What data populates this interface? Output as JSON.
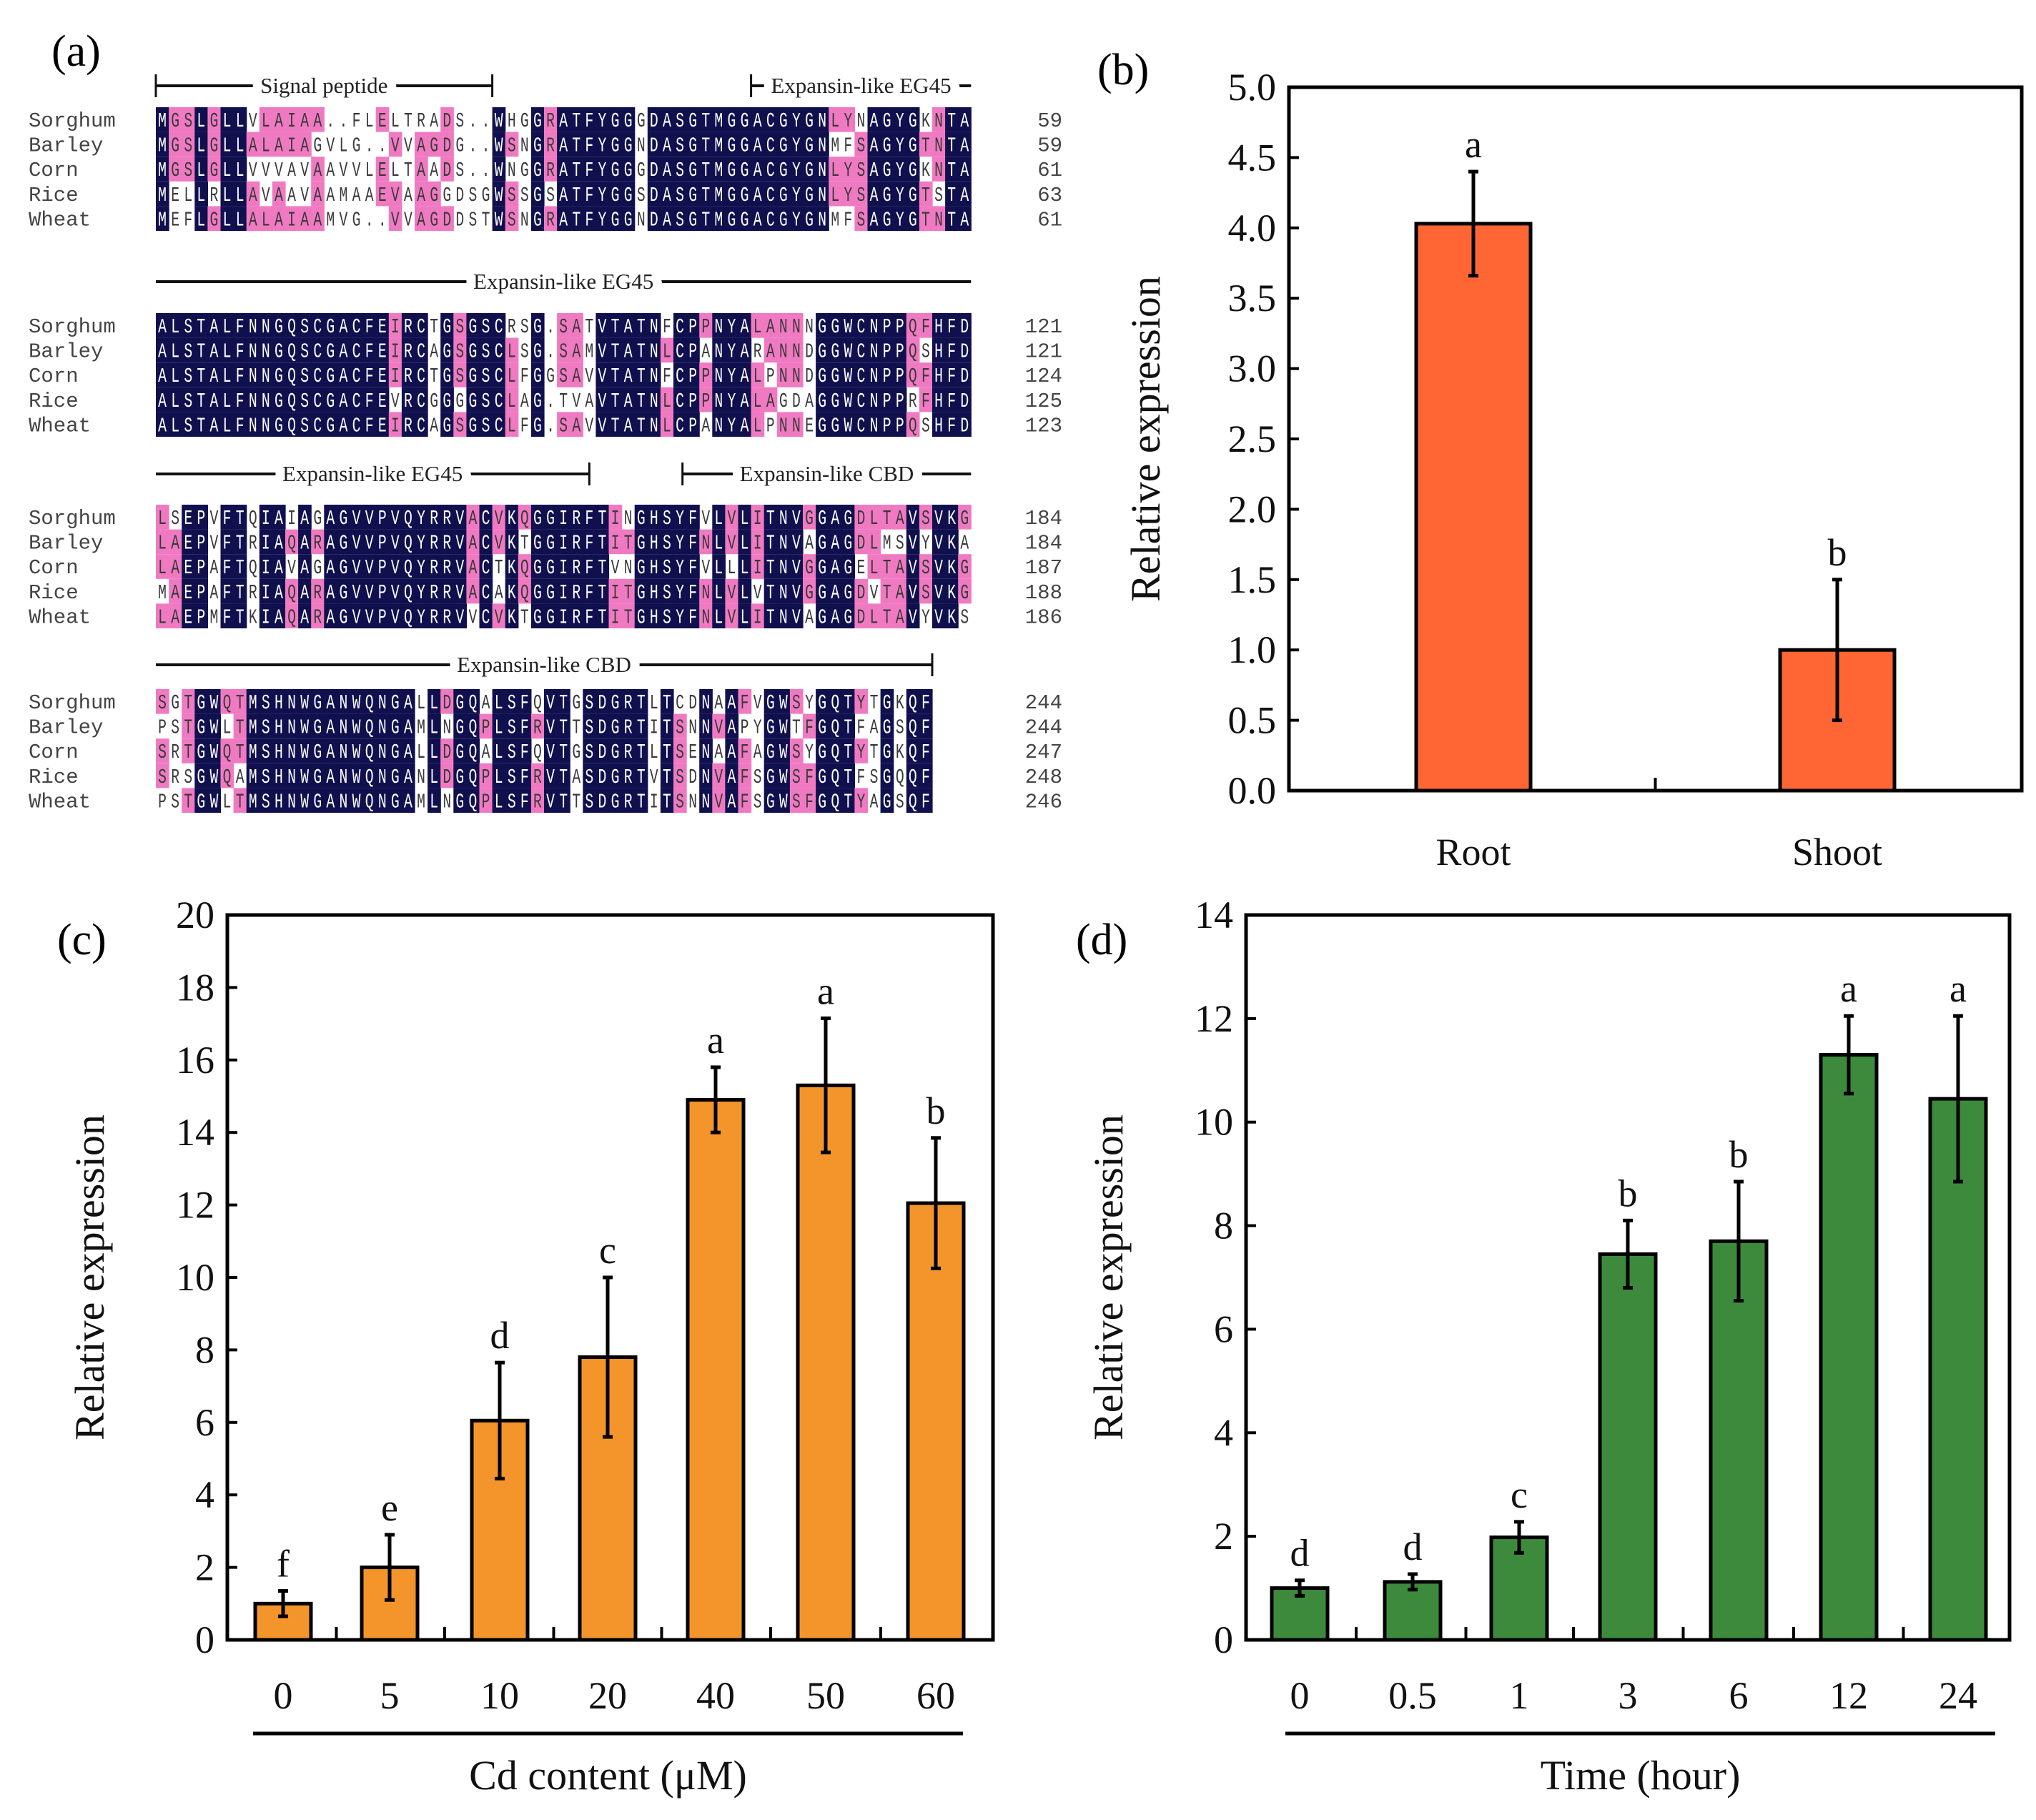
{
  "panel_labels": {
    "a": "(a)",
    "b": "(b)",
    "c": "(c)",
    "d": "(d)"
  },
  "alignment": {
    "colors": {
      "identical": "#10104f",
      "similar": "#f07ac2",
      "text": "#3a3a3a",
      "text_on_identical": "#ffffff"
    },
    "blocks": [
      {
        "annotations": [
          "Signal peptide",
          "Expansin-like EG45"
        ],
        "rows": [
          {
            "species": "Sorghum",
            "seq": "MGSLGLLVLAIAA..FLELTRADS..WHGGRATFYGGGDASGTMGGACGYGNLYNAGYGKNTA",
            "end": "59"
          },
          {
            "species": "Barley",
            "seq": "MGSLGLLALAIAGVLG..VVAGDG..WSNGRATFYGGNDASGTMGGACGYGNMFSAGYGTNTA",
            "end": "59"
          },
          {
            "species": "Corn",
            "seq": "MGSLGLLVVVAVAAVVLELTAADS..WNGGRATFYGGGDASGTMGGACGYGNLYSAGYGKNTA",
            "end": "61"
          },
          {
            "species": "Rice",
            "seq": "MELLRLLAVAAVAAMAAEVAAGGDSGWSSGSATFYGGSDASGTMGGACGYGNLYSAGYGTSTA",
            "end": "63"
          },
          {
            "species": "Wheat",
            "seq": "MEFLGLLALAIAAMVG..VVAGDDSTWSNGRATFYGGNDASGTMGGACGYGNMFSAGYGTNTA",
            "end": "61"
          }
        ]
      },
      {
        "annotations": [
          "Expansin-like EG45"
        ],
        "rows": [
          {
            "species": "Sorghum",
            "seq": "ALSTALFNNGQSCGACFEIRCTGSGSCRSG.SATVTATNFCPPNYALANNNGGWCNPPQFHFD",
            "end": "121"
          },
          {
            "species": "Barley",
            "seq": "ALSTALFNNGQSCGACFEIRCAGSGSCLSG.SAMVTATNLCPANYARANNDGGWCNPPQSHFD",
            "end": "121"
          },
          {
            "species": "Corn",
            "seq": "ALSTALFNNGQSCGACFEIRCTGSGSCLFGGSAVVTATNFCPPNYALPNNDGGWCNPPQFHFD",
            "end": "124"
          },
          {
            "species": "Rice",
            "seq": "ALSTALFNNGQSCGACFEVRCGGGGSCLAG.TVAVTATNLCPPNYALAGDAGGWCNPPRFHFD",
            "end": "125"
          },
          {
            "species": "Wheat",
            "seq": "ALSTALFNNGQSCGACFEIRCAGSGSCLFG.SAVVTATNLCPANYALPNNEGGWCNPPQSHFD",
            "end": "123"
          }
        ]
      },
      {
        "annotations": [
          "Expansin-like EG45",
          "Expansin-like CBD"
        ],
        "rows": [
          {
            "species": "Sorghum",
            "seq": "LSEPVFTQIAIAGAGVVPVQYRRVACVKQGGIRFTINGHSYFVLVLITNVGGAGDLTAVSVKG",
            "end": "184"
          },
          {
            "species": "Barley",
            "seq": "LAEPVFTRIAQARAGVVPVQYRRVACVKTGGIRFTITGHSYFNLVLITNVAGAGDLMSVYVKA",
            "end": "184"
          },
          {
            "species": "Corn",
            "seq": "LAEPAFTQIAVAGAGVVPVQYRRVACTKQGGIRFTVNGHSYFVLLLITNVGGAGELTAVSVKG",
            "end": "187"
          },
          {
            "species": "Rice",
            "seq": "MAEPAFTRIAQARAGVVPVQYRRVACAKQGGIRFTITGHSYFNLVLVTNVGGAGDVTAVSVKG",
            "end": "188"
          },
          {
            "species": "Wheat",
            "seq": "LAEPMFTKIAQARAGVVPVQYRRVVCVKTGGIRFTITGHSYFNLVLITNVAGAGDLTAVYVKS",
            "end": "186"
          }
        ]
      },
      {
        "annotations": [
          "Expansin-like CBD"
        ],
        "rows": [
          {
            "species": "Sorghum",
            "seq": "SGTGWQTMSHNWGANWQNGALLDGQALSFQVTGSDGRTLTCDNAAFVGWSYGQTYTGKQF",
            "end": "244"
          },
          {
            "species": "Barley",
            "seq": "PSTGWLTMSHNWGANWQNGAMLNGQPLSFRVTTSDGRTITSNNVAPYGWTFGQTFAGSQF",
            "end": "244"
          },
          {
            "species": "Corn",
            "seq": "SRTGWQTMSHNWGANWQNGALLDGQALSFQVTGSDGRTLTSENAAFAGWSYGQTYTGKQF",
            "end": "247"
          },
          {
            "species": "Rice",
            "seq": "SRSGWQAMSHNWGANWQNGANLDGQPLSFRVTASDGRTVTSDNVAFSGWSFGQTFSGQQF",
            "end": "248"
          },
          {
            "species": "Wheat",
            "seq": "PSTGWLTMSHNWGANWQNGAMLNGQPLSFRVTTSDGRTITSNNVAFSGWSFGQTYAGSQF",
            "end": "246"
          }
        ]
      }
    ]
  },
  "chart_data": [
    {
      "panel": "b",
      "type": "bar",
      "categories": [
        "Root",
        "Shoot"
      ],
      "values": [
        4.03,
        1.0
      ],
      "errors": [
        0.37,
        0.5
      ],
      "significance": [
        "a",
        "b"
      ],
      "xlabel": "",
      "ylabel": "Relative expression",
      "ylim": [
        0,
        5.0
      ],
      "yticks": [
        "0.0",
        "0.5",
        "1.0",
        "1.5",
        "2.0",
        "2.5",
        "3.0",
        "3.5",
        "4.0",
        "4.5",
        "5.0"
      ],
      "color": "#ff6633"
    },
    {
      "panel": "c",
      "type": "bar",
      "categories": [
        "0",
        "5",
        "10",
        "20",
        "40",
        "50",
        "60"
      ],
      "values": [
        1.0,
        2.0,
        6.05,
        7.8,
        14.9,
        15.3,
        12.05
      ],
      "errors": [
        0.35,
        0.9,
        1.6,
        2.2,
        0.9,
        1.85,
        1.8
      ],
      "significance": [
        "f",
        "e",
        "d",
        "c",
        "a",
        "a",
        "b"
      ],
      "xlabel": "Cd content (μM)",
      "ylabel": "Relative expression",
      "ylim": [
        0,
        20
      ],
      "yticks": [
        "0",
        "2",
        "4",
        "6",
        "8",
        "10",
        "12",
        "14",
        "16",
        "18",
        "20"
      ],
      "color": "#f3952a"
    },
    {
      "panel": "d",
      "type": "bar",
      "categories": [
        "0",
        "0.5",
        "1",
        "3",
        "6",
        "12",
        "24"
      ],
      "values": [
        1.0,
        1.12,
        1.98,
        7.45,
        7.7,
        11.3,
        10.45
      ],
      "errors": [
        0.15,
        0.15,
        0.3,
        0.65,
        1.15,
        0.75,
        1.6
      ],
      "significance": [
        "d",
        "d",
        "c",
        "b",
        "b",
        "a",
        "a"
      ],
      "xlabel": "Time (hour)",
      "ylabel": "Relative expression",
      "ylim": [
        0,
        14
      ],
      "yticks": [
        "0",
        "2",
        "4",
        "6",
        "8",
        "10",
        "12",
        "14"
      ],
      "color": "#3d8a3d"
    }
  ]
}
